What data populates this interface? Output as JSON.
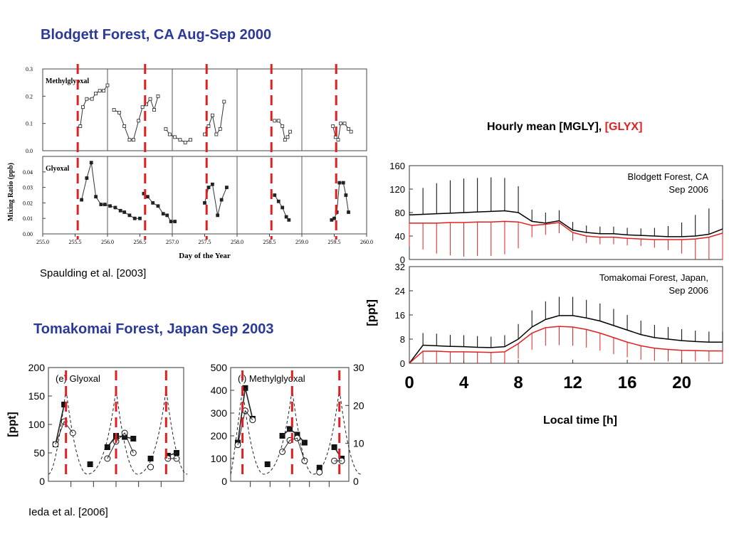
{
  "titles": {
    "blodgett": "Blodgett Forest, CA  Aug-Sep 2000",
    "tomakomai": "Tomakomai Forest, Japan  Sep 2003",
    "hourly_prefix": "Hourly mean [MGLY],",
    "hourly_glyx": "[GLYX]"
  },
  "citations": {
    "spaulding": "Spaulding et al. [2003]",
    "ieda": "Ieda et al. [2006]"
  },
  "colors": {
    "title_blue": "#2b3a9a",
    "dashed_red": "#e02020",
    "mgly": "#000000",
    "glyx": "#e02020"
  },
  "chart_data": [
    {
      "type": "line",
      "id": "blodgett-2000",
      "xlabel": "Day of the Year",
      "ylabel": "Mixing Ratio (ppb)",
      "xlim": [
        255.0,
        260.0
      ],
      "x_ticks": [
        "255.0",
        "255.5",
        "256.0",
        "256.5",
        "257.0",
        "257.5",
        "258.0",
        "258.5",
        "259.0",
        "259.5",
        "260.0"
      ],
      "red_dashed_x": [
        255.54,
        256.58,
        257.53,
        258.53,
        259.53
      ],
      "panels": [
        {
          "name": "Methylglyoxal",
          "ylim": [
            0,
            0.3
          ],
          "y_ticks": [
            "0.3",
            "0.2",
            "0.1",
            "0.0"
          ],
          "segments": [
            [
              [
                255.58,
                0.09
              ],
              [
                255.62,
                0.16
              ],
              [
                255.68,
                0.19
              ],
              [
                255.76,
                0.19
              ],
              [
                255.82,
                0.21
              ],
              [
                255.88,
                0.22
              ],
              [
                255.94,
                0.22
              ],
              [
                256.0,
                0.24
              ]
            ],
            [
              [
                256.1,
                0.15
              ],
              [
                256.18,
                0.14
              ],
              [
                256.26,
                0.09
              ],
              [
                256.34,
                0.04
              ],
              [
                256.4,
                0.04
              ],
              [
                256.48,
                0.11
              ],
              [
                256.54,
                0.16
              ],
              [
                256.6,
                0.17
              ],
              [
                256.66,
                0.19
              ],
              [
                256.72,
                0.15
              ],
              [
                256.78,
                0.2
              ]
            ],
            [
              [
                256.9,
                0.08
              ],
              [
                256.96,
                0.06
              ],
              [
                257.04,
                0.05
              ],
              [
                257.12,
                0.04
              ],
              [
                257.2,
                0.03
              ],
              [
                257.28,
                0.04
              ]
            ],
            [
              [
                257.5,
                0.06
              ],
              [
                257.56,
                0.09
              ],
              [
                257.62,
                0.13
              ],
              [
                257.68,
                0.06
              ],
              [
                257.74,
                0.08
              ],
              [
                257.8,
                0.18
              ]
            ],
            [
              [
                258.58,
                0.11
              ],
              [
                258.64,
                0.11
              ],
              [
                258.7,
                0.09
              ],
              [
                258.74,
                0.04
              ],
              [
                258.78,
                0.05
              ],
              [
                258.82,
                0.07
              ]
            ],
            [
              [
                259.48,
                0.09
              ],
              [
                259.52,
                0.05
              ],
              [
                259.56,
                0.04
              ],
              [
                259.6,
                0.1
              ],
              [
                259.66,
                0.1
              ],
              [
                259.72,
                0.08
              ],
              [
                259.76,
                0.07
              ]
            ]
          ]
        },
        {
          "name": "Glyoxal",
          "ylim": [
            0,
            0.05
          ],
          "y_ticks": [
            "0.04",
            "0.03",
            "0.02",
            "0.01",
            "0.00"
          ],
          "segments": [
            [
              [
                255.6,
                0.022
              ],
              [
                255.68,
                0.036
              ],
              [
                255.75,
                0.046
              ],
              [
                255.82,
                0.024
              ],
              [
                255.9,
                0.019
              ],
              [
                255.96,
                0.019
              ],
              [
                256.04,
                0.018
              ],
              [
                256.12,
                0.017
              ],
              [
                256.2,
                0.015
              ],
              [
                256.26,
                0.014
              ],
              [
                256.34,
                0.012
              ],
              [
                256.42,
                0.01
              ],
              [
                256.5,
                0.01
              ]
            ],
            [
              [
                256.56,
                0.026
              ],
              [
                256.62,
                0.024
              ],
              [
                256.7,
                0.02
              ],
              [
                256.78,
                0.018
              ],
              [
                256.86,
                0.013
              ],
              [
                256.92,
                0.012
              ],
              [
                256.98,
                0.008
              ],
              [
                257.04,
                0.008
              ]
            ],
            [
              [
                257.5,
                0.02
              ],
              [
                257.56,
                0.03
              ],
              [
                257.62,
                0.032
              ],
              [
                257.7,
                0.012
              ],
              [
                257.76,
                0.022
              ],
              [
                257.84,
                0.03
              ]
            ],
            [
              [
                258.58,
                0.025
              ],
              [
                258.64,
                0.021
              ],
              [
                258.7,
                0.017
              ],
              [
                258.76,
                0.011
              ],
              [
                258.8,
                0.009
              ]
            ],
            [
              [
                259.46,
                0.009
              ],
              [
                259.5,
                0.01
              ],
              [
                259.54,
                0.014
              ],
              [
                259.58,
                0.033
              ],
              [
                259.64,
                0.033
              ],
              [
                259.68,
                0.025
              ],
              [
                259.72,
                0.014
              ]
            ]
          ]
        }
      ]
    },
    {
      "type": "line",
      "id": "hourly-mean",
      "xlabel": "Local time [h]",
      "ylabel": "[ppt]",
      "xlim": [
        0,
        23
      ],
      "x_ticks": [
        "0",
        "4",
        "8",
        "12",
        "16",
        "20"
      ],
      "series_colors": {
        "MGLY": "#000000",
        "GLYX": "#e02020"
      },
      "panels": [
        {
          "site": "Blodgett Forest, CA",
          "period": "Sep 2006",
          "ylim": [
            0,
            160
          ],
          "y_ticks": [
            "160",
            "120",
            "80",
            "40",
            "0"
          ],
          "mgly": [
            76,
            77,
            78,
            79,
            80,
            81,
            82,
            83,
            80,
            65,
            62,
            66,
            50,
            46,
            44,
            44,
            42,
            41,
            40,
            39,
            39,
            40,
            43,
            52
          ],
          "glyx": [
            62,
            62,
            62,
            63,
            63,
            64,
            64,
            65,
            64,
            58,
            60,
            63,
            46,
            40,
            38,
            38,
            36,
            35,
            34,
            34,
            34,
            35,
            38,
            45
          ],
          "err": [
            40,
            45,
            52,
            56,
            58,
            58,
            58,
            56,
            45,
            20,
            18,
            18,
            14,
            12,
            12,
            12,
            12,
            12,
            14,
            18,
            24,
            36,
            44,
            50
          ]
        },
        {
          "site": "Tomakomai Forest, Japan,",
          "period": "Sep 2006",
          "ylim": [
            0,
            32
          ],
          "y_ticks": [
            "32",
            "24",
            "16",
            "8",
            "0"
          ],
          "mgly": [
            0,
            6,
            5.8,
            5.6,
            5.5,
            5.3,
            5.2,
            5.5,
            8,
            12,
            14.5,
            15.8,
            15.8,
            15,
            14,
            12.5,
            11,
            9.5,
            8.5,
            8,
            7.5,
            7.2,
            7,
            7
          ],
          "glyx": [
            0,
            4,
            4,
            3.8,
            3.8,
            3.7,
            3.6,
            3.8,
            6.5,
            10,
            11.8,
            12.2,
            12,
            11.2,
            10,
            8.5,
            7,
            5.8,
            5,
            4.6,
            4.3,
            4.2,
            4.1,
            4.1
          ],
          "err": [
            0,
            4,
            4,
            3.8,
            3.8,
            3.7,
            3.6,
            3.8,
            5,
            5.5,
            6,
            6.2,
            6.2,
            6,
            5.8,
            5.5,
            5,
            4.6,
            4.2,
            4,
            3.8,
            3.6,
            3.5,
            3.4
          ]
        }
      ]
    },
    {
      "type": "line",
      "id": "tomakomai-glyoxal",
      "panel_label": "(e) Glyoxal",
      "ylabel": "[ppt]",
      "ylim_left": [
        0,
        200
      ],
      "y_ticks_left": [
        "200",
        "150",
        "100",
        "50",
        "0"
      ],
      "red_dashed_frac": [
        0.13,
        0.5,
        0.87
      ],
      "series": [
        {
          "name": "filled",
          "values": [
            65,
            135,
            null,
            null,
            30,
            null,
            60,
            80,
            78,
            75,
            null,
            40,
            null,
            45,
            50
          ]
        },
        {
          "name": "open",
          "values": [
            65,
            105,
            85,
            null,
            null,
            null,
            40,
            70,
            85,
            50,
            null,
            25,
            null,
            40,
            40
          ]
        }
      ]
    },
    {
      "type": "line",
      "id": "tomakomai-methylglyoxal",
      "panel_label": "(f) Methylglyoxal",
      "ylim_left": [
        0,
        500
      ],
      "y_ticks_left": [
        "500",
        "400",
        "300",
        "200",
        "100",
        "0"
      ],
      "ylim_right": [
        0,
        30
      ],
      "y_ticks_right": [
        "30",
        "20",
        "10",
        "0"
      ],
      "red_dashed_frac": [
        0.1,
        0.52,
        0.92
      ],
      "series": [
        {
          "name": "filled",
          "values": [
            170,
            410,
            275,
            null,
            75,
            null,
            200,
            230,
            205,
            170,
            null,
            60,
            null,
            150,
            100
          ]
        },
        {
          "name": "open",
          "values": [
            160,
            310,
            270,
            null,
            null,
            null,
            130,
            180,
            190,
            90,
            null,
            40,
            null,
            90,
            90
          ]
        }
      ]
    }
  ]
}
